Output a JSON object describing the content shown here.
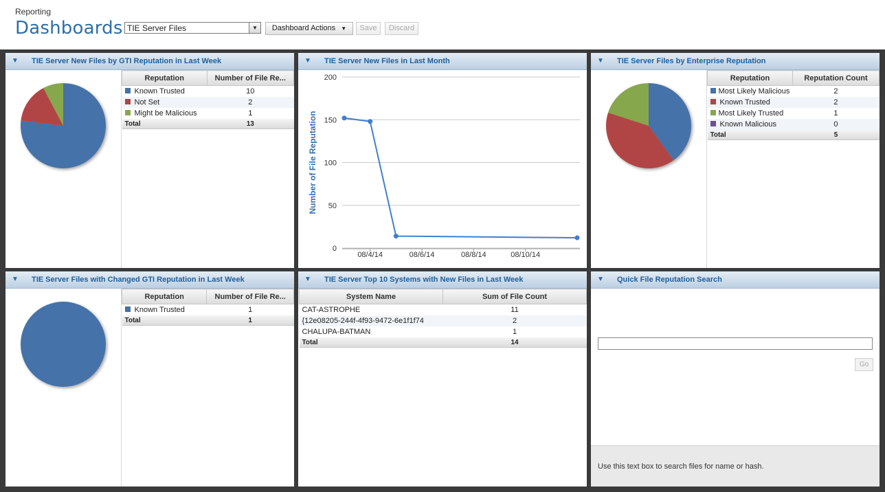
{
  "header": {
    "breadcrumb": "Reporting",
    "title": "Dashboards",
    "dashboard_select": "TIE Server Files",
    "actions_label": "Dashboard Actions",
    "save_label": "Save",
    "discard_label": "Discard"
  },
  "colors": {
    "blue": "#4472a8",
    "red": "#b14545",
    "green": "#87a74e",
    "purple": "#6e4f8f",
    "title_text": "#1f5e98"
  },
  "panels": {
    "gti_week": {
      "title": "TIE Server New Files by GTI Reputation in Last Week",
      "col1": "Reputation",
      "col2": "Number of File Re...",
      "rows": [
        {
          "label": "Known Trusted",
          "value": "10",
          "color": "#4472a8"
        },
        {
          "label": "Not Set",
          "value": "2",
          "color": "#b14545"
        },
        {
          "label": "Might be Malicious",
          "value": "1",
          "color": "#87a74e"
        }
      ],
      "total_label": "Total",
      "total_value": "13"
    },
    "month": {
      "title": "TIE Server New Files in Last Month"
    },
    "enterprise": {
      "title": "TIE Server Files by Enterprise Reputation",
      "col1": "Reputation",
      "col2": "Reputation Count",
      "rows": [
        {
          "label": "Most Likely Malicious",
          "value": "2",
          "color": "#4472a8"
        },
        {
          "label": "Known Trusted",
          "value": "2",
          "color": "#b14545"
        },
        {
          "label": "Most Likely Trusted",
          "value": "1",
          "color": "#87a74e"
        },
        {
          "label": "Known Malicious",
          "value": "0",
          "color": "#6e4f8f"
        }
      ],
      "total_label": "Total",
      "total_value": "5"
    },
    "changed": {
      "title": "TIE Server Files with Changed GTI Reputation in Last Week",
      "col1": "Reputation",
      "col2": "Number of File Re...",
      "rows": [
        {
          "label": "Known Trusted",
          "value": "1",
          "color": "#4472a8"
        }
      ],
      "total_label": "Total",
      "total_value": "1"
    },
    "top10": {
      "title": "TIE Server Top 10 Systems with New Files in Last Week",
      "col1": "System Name",
      "col2": "Sum of File Count",
      "rows": [
        {
          "label": "CAT-ASTROPHE",
          "value": "11"
        },
        {
          "label": "{12e08205-244f-4f93-9472-6e1f1f74",
          "value": "2"
        },
        {
          "label": "CHALUPA-BATMAN",
          "value": "1"
        }
      ],
      "total_label": "Total",
      "total_value": "14"
    },
    "quick": {
      "title": "Quick File Reputation Search",
      "go_label": "Go",
      "help": "Use this text box to search files for name or hash."
    }
  },
  "chart_data": [
    {
      "type": "pie",
      "labels": [
        "Known Trusted",
        "Not Set",
        "Might be Malicious"
      ],
      "values": [
        10,
        2,
        1
      ],
      "colors": [
        "#4472a8",
        "#b14545",
        "#87a74e"
      ]
    },
    {
      "type": "line",
      "title": "",
      "xlabel": "",
      "ylabel": "Number of File Reputation",
      "ylim": [
        0,
        200
      ],
      "yticks": [
        0,
        50,
        100,
        150,
        200
      ],
      "xticks": [
        "08/4/14",
        "08/6/14",
        "08/8/14",
        "08/10/14"
      ],
      "x": [
        "08/3/14",
        "08/4/14",
        "08/5/14",
        "08/12/14"
      ],
      "values": [
        152,
        148,
        14,
        12
      ],
      "color": "#3f7fd0"
    },
    {
      "type": "pie",
      "labels": [
        "Most Likely Malicious",
        "Known Trusted",
        "Most Likely Trusted",
        "Known Malicious"
      ],
      "values": [
        2,
        2,
        1,
        0
      ],
      "colors": [
        "#4472a8",
        "#b14545",
        "#87a74e",
        "#6e4f8f"
      ]
    },
    {
      "type": "pie",
      "labels": [
        "Known Trusted"
      ],
      "values": [
        1
      ],
      "colors": [
        "#4472a8"
      ]
    }
  ]
}
